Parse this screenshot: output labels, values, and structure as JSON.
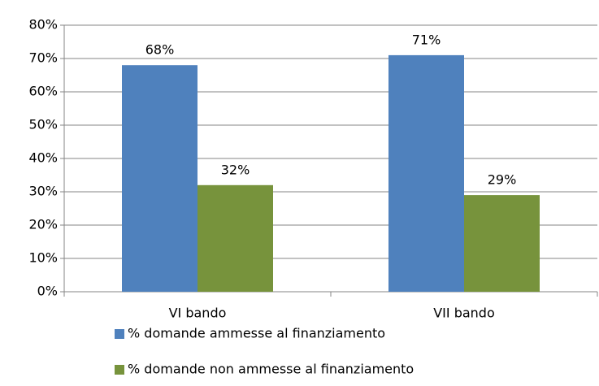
{
  "chart_data": {
    "type": "bar",
    "categories": [
      "VI bando",
      "VII bando"
    ],
    "series": [
      {
        "name": "% domande ammesse al finanziamento",
        "color": "#4f81bd",
        "values": [
          68,
          71
        ],
        "value_labels": [
          "68%",
          "71%"
        ]
      },
      {
        "name": "% domande non ammesse al finanziamento",
        "color": "#77933c",
        "values": [
          32,
          29
        ],
        "value_labels": [
          "32%",
          "29%"
        ]
      }
    ],
    "ylim": [
      0,
      80
    ],
    "yticks": [
      {
        "value": 0,
        "label": "0%"
      },
      {
        "value": 10,
        "label": "10%"
      },
      {
        "value": 20,
        "label": "20%"
      },
      {
        "value": 30,
        "label": "30%"
      },
      {
        "value": 40,
        "label": "40%"
      },
      {
        "value": 50,
        "label": "50%"
      },
      {
        "value": 60,
        "label": "60%"
      },
      {
        "value": 70,
        "label": "70%"
      },
      {
        "value": 80,
        "label": "80%"
      }
    ],
    "grid": true,
    "legend": "bottom"
  }
}
